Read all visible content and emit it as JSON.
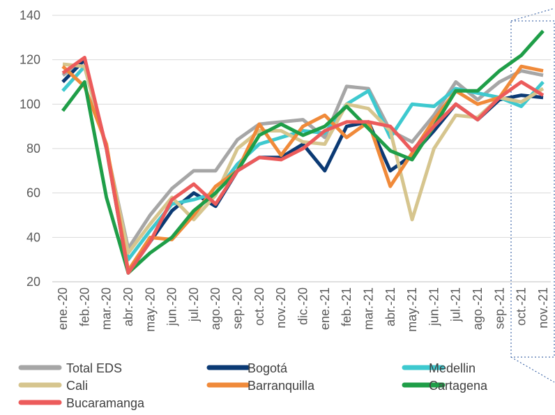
{
  "chart_data": {
    "type": "line",
    "categories": [
      "ene.-20",
      "feb.-20",
      "mar.-20",
      "abr.-20",
      "may.-20",
      "jun.-20",
      "jul.-20",
      "ago.-20",
      "sep.-20",
      "oct.-20",
      "nov.-20",
      "dic.-20",
      "ene.-21",
      "feb.-21",
      "mar.-21",
      "abr.-21",
      "may.-21",
      "jun.-21",
      "jul.-21",
      "ago.-21",
      "sep.-21",
      "oct.-21",
      "nov.-21"
    ],
    "ylim": [
      20,
      140
    ],
    "yticks": [
      20,
      40,
      60,
      80,
      100,
      120,
      140
    ],
    "grid": true,
    "legend": "bottom",
    "series": [
      {
        "name": "Total EDS",
        "color": "#a6a6a6",
        "values": [
          113,
          120,
          80,
          35,
          50,
          62,
          70,
          70,
          84,
          91,
          92,
          93,
          85,
          108,
          107,
          88,
          83,
          95,
          110,
          102,
          110,
          115,
          113
        ]
      },
      {
        "name": "Bogotá",
        "color": "#0b3a74",
        "values": [
          110,
          120,
          80,
          24,
          38,
          52,
          60,
          54,
          70,
          76,
          76,
          82,
          70,
          90,
          92,
          70,
          77,
          88,
          100,
          93,
          102,
          104,
          103
        ]
      },
      {
        "name": "Medellin",
        "color": "#3ec9cf",
        "values": [
          106,
          117,
          80,
          30,
          43,
          55,
          57,
          60,
          73,
          82,
          85,
          88,
          87,
          100,
          106,
          85,
          100,
          99,
          107,
          105,
          103,
          99,
          110
        ]
      },
      {
        "name": "Cali",
        "color": "#d6c58e",
        "values": [
          118,
          117,
          80,
          33,
          46,
          58,
          48,
          59,
          80,
          88,
          88,
          83,
          82,
          100,
          98,
          88,
          48,
          80,
          95,
          94,
          103,
          101,
          107
        ]
      },
      {
        "name": "Barranquilla",
        "color": "#f08a3a",
        "values": [
          117,
          108,
          82,
          25,
          40,
          39,
          50,
          63,
          70,
          91,
          77,
          90,
          95,
          85,
          92,
          63,
          78,
          93,
          106,
          100,
          103,
          117,
          115
        ]
      },
      {
        "name": "Cartagena",
        "color": "#1f9e48",
        "values": [
          97,
          110,
          58,
          24,
          33,
          40,
          52,
          60,
          70,
          86,
          91,
          86,
          90,
          99,
          89,
          79,
          75,
          90,
          106,
          106,
          115,
          122,
          133
        ]
      },
      {
        "name": "Bucaramanga",
        "color": "#ec5b5b",
        "values": [
          114,
          121,
          80,
          24,
          38,
          57,
          64,
          55,
          70,
          76,
          75,
          80,
          88,
          92,
          92,
          90,
          79,
          90,
          100,
          93,
          103,
          110,
          104
        ]
      }
    ]
  }
}
